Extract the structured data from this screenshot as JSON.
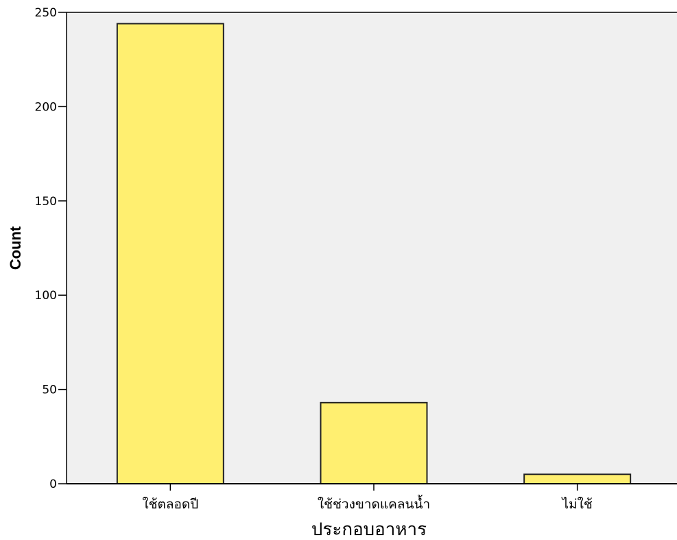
{
  "chart_data": {
    "type": "bar",
    "title": "",
    "xlabel": "ประกอบอาหาร",
    "ylabel": "Count",
    "categories": [
      "ใช้ตลอดปี",
      "ใช้ช่วงขาดแคลนน้ำ",
      "ไม่ใช้"
    ],
    "values": [
      244,
      43,
      5
    ],
    "ylim": [
      0,
      250
    ],
    "yticks": [
      0,
      50,
      100,
      150,
      200,
      250
    ],
    "grid": false,
    "legend": "none",
    "colors": {
      "bar_fill": "#ffef70",
      "bar_stroke": "#222222",
      "plot_background": "#f0f0f0",
      "axis": "#000000"
    }
  }
}
